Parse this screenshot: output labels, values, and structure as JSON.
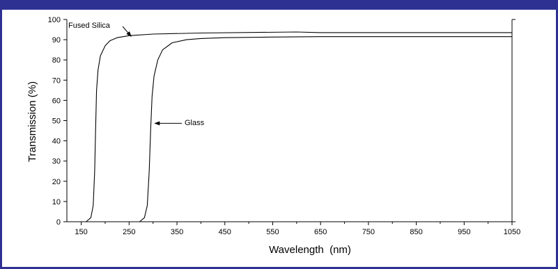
{
  "colors": {
    "frame": "#2e3192",
    "ink": "#000000"
  },
  "chart_data": {
    "type": "line",
    "title": "",
    "xlabel": "Wavelength  (nm)",
    "ylabel": "Transmission (%)",
    "xlim": [
      120,
      1050
    ],
    "ylim": [
      0,
      100
    ],
    "x_ticks": [
      150,
      250,
      350,
      450,
      550,
      650,
      750,
      850,
      950,
      1050
    ],
    "y_ticks": [
      0,
      10,
      20,
      30,
      40,
      50,
      60,
      70,
      80,
      90,
      100
    ],
    "grid": false,
    "series": [
      {
        "name": "Fused Silica",
        "x": [
          160,
          170,
          175,
          178,
          180,
          182,
          185,
          190,
          200,
          210,
          225,
          250,
          300,
          400,
          600,
          650,
          1050
        ],
        "y": [
          0,
          2,
          8,
          25,
          45,
          65,
          75,
          82,
          87,
          89.5,
          91,
          92,
          92.8,
          93.3,
          93.8,
          93.5,
          93.5
        ]
      },
      {
        "name": "Glass",
        "x": [
          272,
          282,
          288,
          292,
          295,
          298,
          302,
          310,
          320,
          340,
          370,
          400,
          450,
          550,
          650,
          1050
        ],
        "y": [
          0,
          2,
          8,
          25,
          45,
          62,
          72,
          80,
          85,
          88.5,
          90,
          90.6,
          91,
          91.3,
          91.5,
          91.5
        ]
      }
    ],
    "annotations": [
      {
        "text": "Fused Silica",
        "points_to": {
          "x": 260,
          "y": 92
        }
      },
      {
        "text": "Glass",
        "points_to": {
          "x": 298,
          "y": 49
        }
      }
    ]
  }
}
